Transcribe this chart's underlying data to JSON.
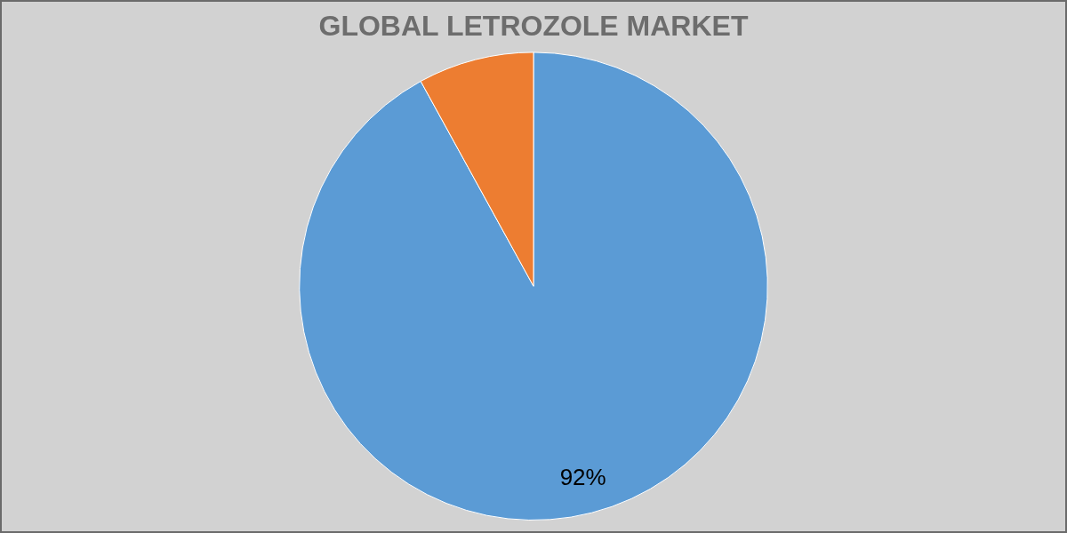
{
  "chart_data": {
    "type": "pie",
    "title": "GLOBAL LETROZOLE MARKET",
    "categories": [
      null,
      null
    ],
    "values": [
      92,
      8
    ],
    "colors": [
      "#5b9bd5",
      "#ed7d31"
    ],
    "value_labels": [
      "92%",
      null
    ],
    "legend": false
  }
}
